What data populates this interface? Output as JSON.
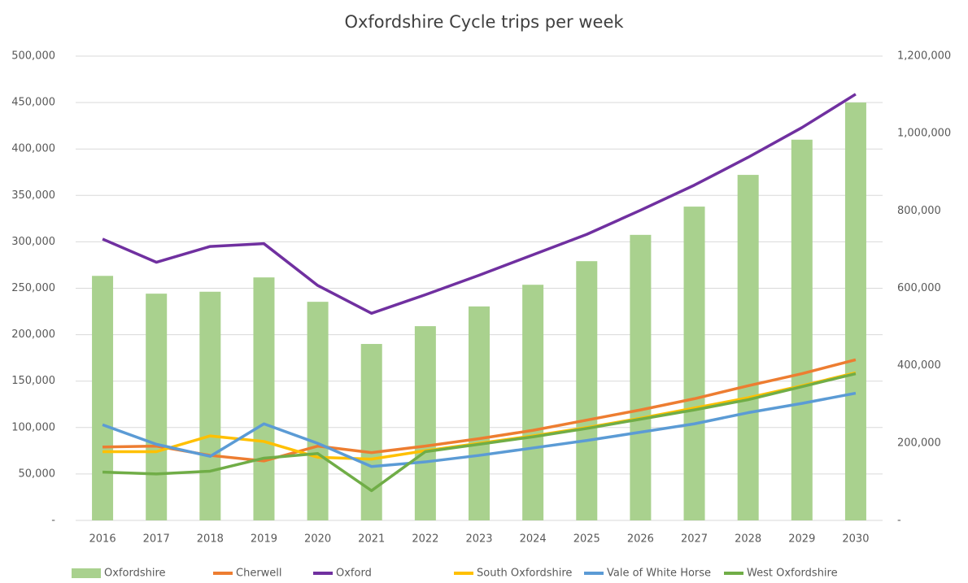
{
  "chart_data": {
    "type": "combo",
    "title": "Oxfordshire Cycle trips per week",
    "categories": [
      "2016",
      "2017",
      "2018",
      "2019",
      "2020",
      "2021",
      "2022",
      "2023",
      "2024",
      "2025",
      "2026",
      "2027",
      "2028",
      "2029",
      "2030"
    ],
    "series": [
      {
        "name": "Oxfordshire",
        "type": "bar",
        "axis": "y2",
        "color": "#a9d18e",
        "values": [
          632000,
          586000,
          591000,
          628000,
          565000,
          456000,
          502000,
          553000,
          609000,
          670000,
          738000,
          811000,
          893000,
          984000,
          1080000
        ]
      },
      {
        "name": "Cherwell",
        "type": "line",
        "color": "#ed7d31",
        "values": [
          79000,
          80000,
          70000,
          64000,
          80000,
          73000,
          80000,
          88000,
          97000,
          108000,
          119000,
          131000,
          145000,
          158000,
          173000
        ]
      },
      {
        "name": "Oxford",
        "type": "line",
        "color": "#7030a0",
        "values": [
          303000,
          278000,
          295000,
          298000,
          253000,
          223000,
          243000,
          264000,
          286000,
          308000,
          334000,
          361000,
          391000,
          423000,
          459000
        ]
      },
      {
        "name": "South Oxfordshire",
        "type": "line",
        "color": "#ffc000",
        "values": [
          74000,
          74000,
          91000,
          85000,
          68000,
          66000,
          75000,
          83000,
          91000,
          100000,
          110000,
          121000,
          132000,
          145000,
          159000
        ]
      },
      {
        "name": "Vale of White Horse",
        "type": "line",
        "color": "#5b9bd5",
        "values": [
          103000,
          82000,
          69000,
          104000,
          83000,
          58000,
          63000,
          70000,
          78000,
          86000,
          95000,
          104000,
          116000,
          126000,
          137000
        ]
      },
      {
        "name": "West Oxfordshire",
        "type": "line",
        "color": "#70ad47",
        "values": [
          52000,
          50000,
          53000,
          67000,
          72000,
          32000,
          74000,
          82000,
          90000,
          99000,
          109000,
          119000,
          130000,
          144000,
          158000
        ]
      }
    ],
    "ylim": [
      0,
      500000
    ],
    "yticks": [
      {
        "value": 0,
        "label": "-"
      },
      {
        "value": 50000,
        "label": "50,000"
      },
      {
        "value": 100000,
        "label": "100,000"
      },
      {
        "value": 150000,
        "label": "150,000"
      },
      {
        "value": 200000,
        "label": "200,000"
      },
      {
        "value": 250000,
        "label": "250,000"
      },
      {
        "value": 300000,
        "label": "300,000"
      },
      {
        "value": 350000,
        "label": "350,000"
      },
      {
        "value": 400000,
        "label": "400,000"
      },
      {
        "value": 450000,
        "label": "450,000"
      },
      {
        "value": 500000,
        "label": "500,000"
      }
    ],
    "y2lim": [
      0,
      1200000
    ],
    "y2ticks": [
      {
        "value": 0,
        "label": "-"
      },
      {
        "value": 200000,
        "label": "200,000"
      },
      {
        "value": 400000,
        "label": "400,000"
      },
      {
        "value": 600000,
        "label": "600,000"
      },
      {
        "value": 800000,
        "label": "800,000"
      },
      {
        "value": 1000000,
        "label": "1,000,000"
      },
      {
        "value": 1200000,
        "label": "1,200,000"
      }
    ],
    "grid": true,
    "legend": "bottom"
  }
}
